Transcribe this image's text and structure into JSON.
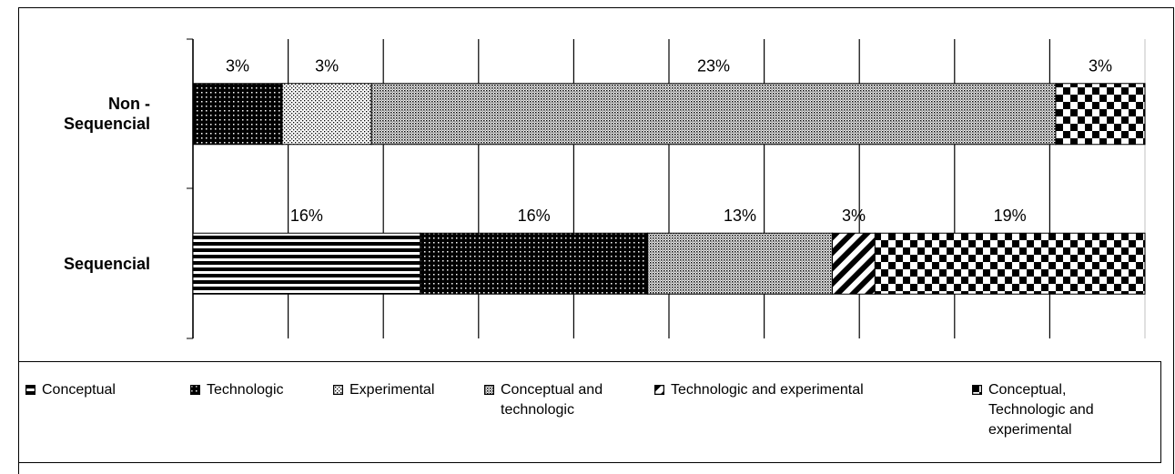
{
  "chart_data": {
    "type": "bar_percent_stacked_horizontal",
    "categories": [
      "Non - Sequencial",
      "Sequencial"
    ],
    "series": [
      {
        "name": "Conceptual",
        "pattern": "stripes",
        "values": [
          null,
          16
        ],
        "value_labels": [
          null,
          "16%"
        ]
      },
      {
        "name": "Technologic",
        "pattern": "dots-dark",
        "values": [
          3,
          16
        ],
        "value_labels": [
          "3%",
          "16%"
        ]
      },
      {
        "name": "Experimental",
        "pattern": "dots-light",
        "values": [
          3,
          null
        ],
        "value_labels": [
          "3%",
          null
        ]
      },
      {
        "name": "Conceptual and technologic",
        "pattern": "dots-gray",
        "values": [
          23,
          13
        ],
        "value_labels": [
          "23%",
          "13%"
        ]
      },
      {
        "name": "Technologic and experimental",
        "pattern": "diagonal",
        "values": [
          null,
          3
        ],
        "value_labels": [
          null,
          "3%"
        ]
      },
      {
        "name": "Conceptual, Technologic and experimental",
        "pattern": "checker",
        "values": [
          3,
          19
        ],
        "value_labels": [
          "3%",
          "19%"
        ]
      }
    ],
    "xlim": [
      0,
      100
    ],
    "xticks": [
      0,
      10,
      20,
      30,
      40,
      50,
      60,
      70,
      80,
      90,
      100
    ],
    "grid": true,
    "legend": "bottom"
  }
}
